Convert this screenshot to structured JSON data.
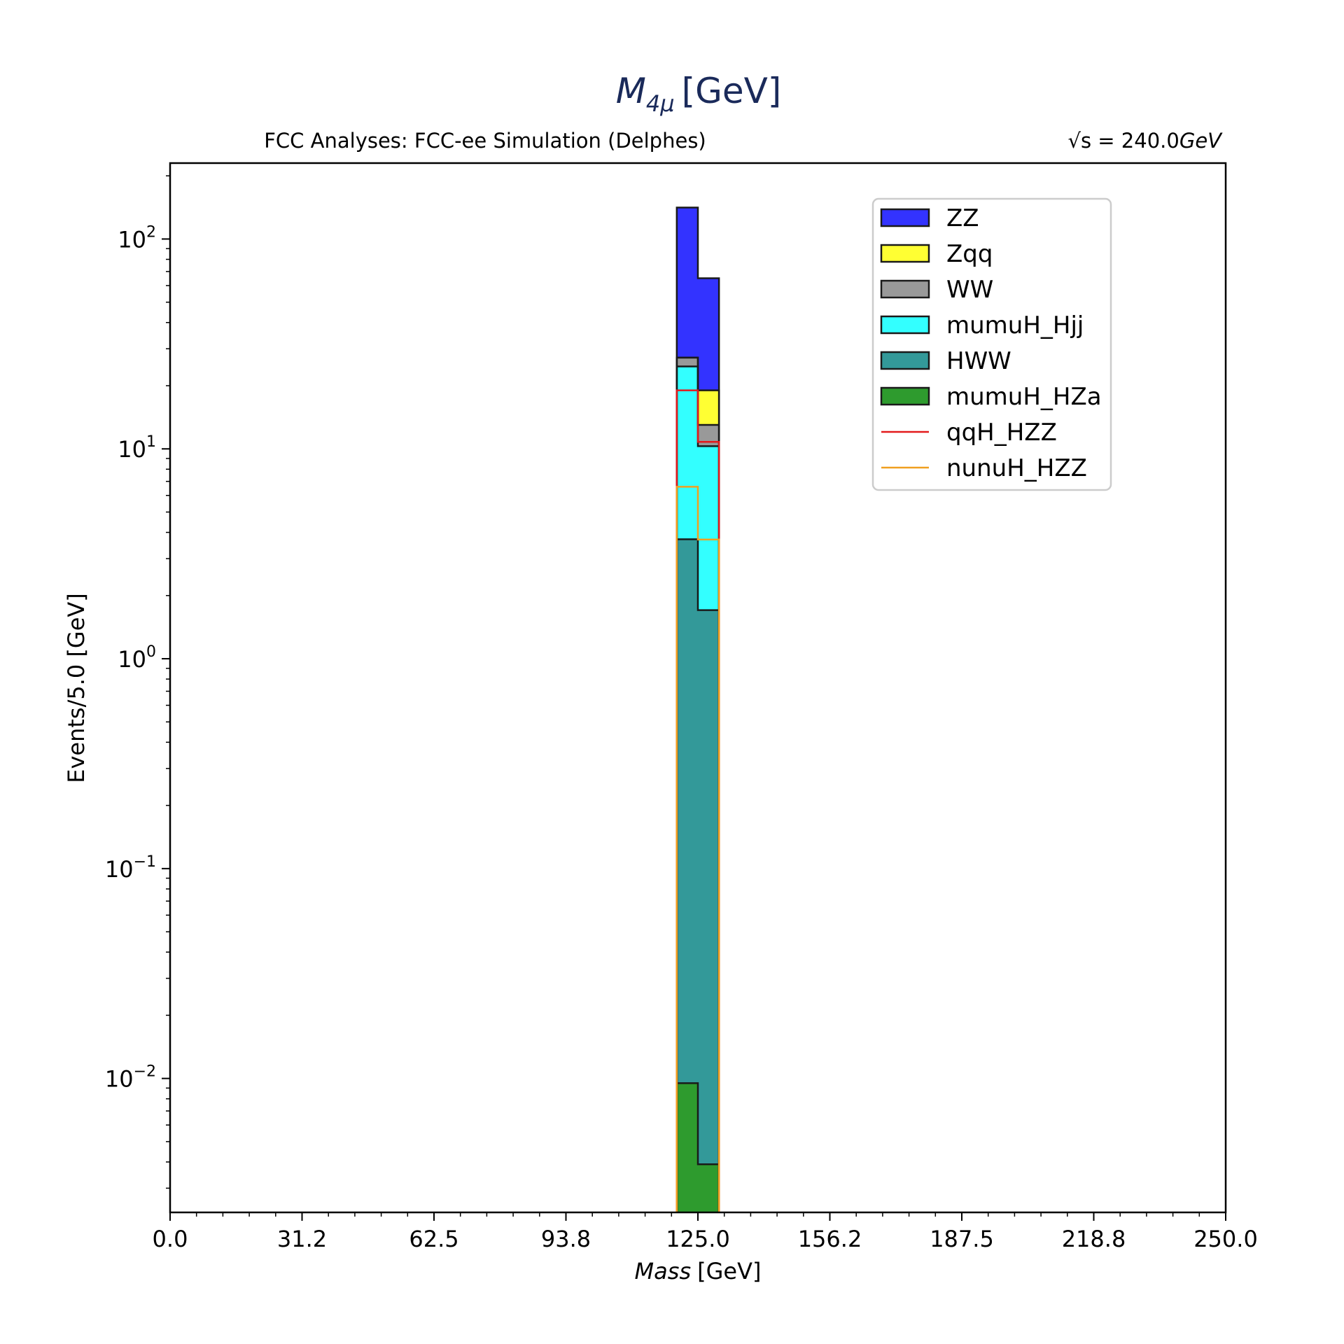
{
  "chart_data": {
    "type": "bar",
    "stacked": true,
    "title_main": "M",
    "title_sub": "4μ",
    "title_unit": "[GeV]",
    "subtitle_left": "FCC Analyses: FCC-ee Simulation (Delphes)",
    "subtitle_right_prefix": "√s = 240.0",
    "subtitle_right_unit": "GeV",
    "xlabel_var": "Mass",
    "xlabel_unit": "[GeV]",
    "ylabel": "Events/5.0 [GeV]",
    "xlim": [
      0,
      250
    ],
    "ylim": [
      0.0023,
      230
    ],
    "log_y": true,
    "grid": false,
    "legend_position": "top-right",
    "x_tick_labels": [
      "0.0",
      "31.2",
      "62.5",
      "93.8",
      "125.0",
      "156.2",
      "187.5",
      "218.8",
      "250.0"
    ],
    "y_ticks": [
      {
        "base": "10",
        "exp": "2"
      },
      {
        "base": "10",
        "exp": "1"
      },
      {
        "base": "10",
        "exp": "0"
      },
      {
        "base": "10",
        "exp": "−1"
      },
      {
        "base": "10",
        "exp": "−2"
      }
    ],
    "bins": [
      [
        120,
        125
      ],
      [
        125,
        130
      ]
    ],
    "stacked_series": [
      {
        "name": "mumuH_HZa",
        "color": "#2e9b2e",
        "values": [
          0.0095,
          0.0039
        ]
      },
      {
        "name": "HWW",
        "color": "#339999",
        "values": [
          3.7,
          1.7
        ]
      },
      {
        "name": "mumuH_Hjj",
        "color": "#33ffff",
        "values": [
          21.0,
          8.6
        ]
      },
      {
        "name": "WW",
        "color": "#999999",
        "values": [
          2.5,
          2.7
        ]
      },
      {
        "name": "Zqq",
        "color": "#ffff33",
        "values": [
          0.0,
          6.0
        ]
      },
      {
        "name": "ZZ",
        "color": "#3333ff",
        "values": [
          114,
          46
        ]
      }
    ],
    "line_series": [
      {
        "name": "qqH_HZZ",
        "color": "#e31a1c",
        "values": [
          19.0,
          10.8
        ]
      },
      {
        "name": "nunuH_HZZ",
        "color": "#f0a020",
        "values": [
          6.6,
          3.7
        ]
      }
    ],
    "legend_order": [
      "ZZ",
      "Zqq",
      "WW",
      "mumuH_Hjj",
      "HWW",
      "mumuH_HZa",
      "qqH_HZZ",
      "nunuH_HZZ"
    ]
  }
}
